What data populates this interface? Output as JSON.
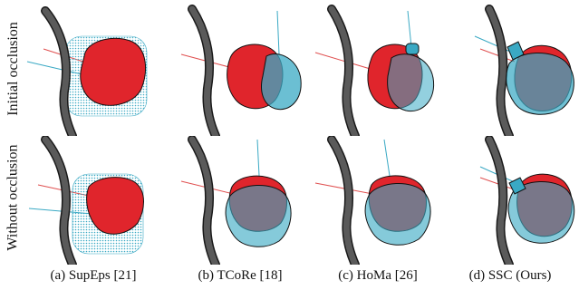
{
  "figure": {
    "row_labels": [
      "Initial occlusion",
      "Without occlusion"
    ],
    "captions": [
      "(a) SupEps [21]",
      "(b) TCoRe [18]",
      "(c) HoMa [26]",
      "(d) SSC (Ours)"
    ]
  },
  "colors": {
    "fruit_red": "#e0252c",
    "estimate_cyan": "#3aa9c4",
    "stem_gray": "#5a5a5a",
    "stem_outline": "#1a1a1a",
    "ray_red": "#e05050"
  }
}
